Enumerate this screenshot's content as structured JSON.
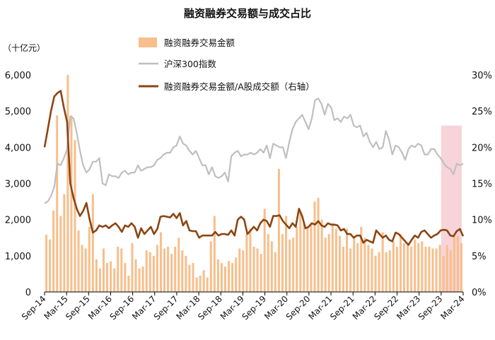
{
  "chart_data": {
    "type": "bar",
    "title": "融资融券交易额与成交占比",
    "y_left_unit": "（十亿元）",
    "legend": [
      {
        "key": "bar",
        "label": "融资融券交易金额",
        "color": "#f7bf8c"
      },
      {
        "key": "index",
        "label": "沪深300指数",
        "color": "#bfbfbf"
      },
      {
        "key": "ratio",
        "label": "融资融券交易金额/A股成交额（右轴）",
        "color": "#8b4513"
      }
    ],
    "y_left": {
      "min": 0,
      "max": 6000,
      "ticks": [
        "0",
        "1,000",
        "2,000",
        "3,000",
        "4,000",
        "5,000",
        "6,000"
      ]
    },
    "y_right": {
      "min": 0,
      "max": 30,
      "ticks": [
        "0%",
        "5%",
        "10%",
        "15%",
        "20%",
        "25%",
        "30%"
      ]
    },
    "x_ticks": [
      "Sep-14",
      "Mar-15",
      "Sep-15",
      "Mar-16",
      "Sep-16",
      "Mar-17",
      "Sep-17",
      "Mar-18",
      "Sep-18",
      "Mar-19",
      "Sep-19",
      "Mar-20",
      "Sep-20",
      "Mar-21",
      "Sep-21",
      "Mar-22",
      "Sep-22",
      "Mar-23",
      "Sep-23",
      "Mar-24"
    ],
    "highlight": {
      "from": "Sep-23",
      "to": "Mar-24",
      "color": "#f4c6cc"
    },
    "series": [
      {
        "name": "融资融券交易金额",
        "unit": "十亿元",
        "values": [
          1580,
          1450,
          2250,
          4880,
          2100,
          2700,
          6000,
          4880,
          4200,
          1700,
          1300,
          1200,
          1800,
          2700,
          900,
          650,
          1200,
          800,
          850,
          650,
          1250,
          1200,
          800,
          450,
          1350,
          900,
          650,
          700,
          1150,
          1100,
          1000,
          1300,
          1650,
          1200,
          1250,
          1050,
          1250,
          1500,
          1150,
          1000,
          750,
          800,
          400,
          450,
          600,
          400,
          1400,
          2100,
          900,
          800,
          700,
          850,
          800,
          950,
          1200,
          1150,
          1600,
          1750,
          1250,
          1200,
          1050,
          2300,
          1600,
          1400,
          1100,
          3400,
          1600,
          2100,
          1450,
          1500,
          1800,
          2200,
          1900,
          1800,
          1900,
          2500,
          2600,
          2000,
          1500,
          1600,
          1900,
          1750,
          1550,
          1250,
          1750,
          1200,
          1550,
          1350,
          1800,
          1500,
          1300,
          1200,
          1000,
          1100,
          1650,
          1100,
          1150,
          1400,
          1250,
          1600,
          1350,
          1350,
          1250,
          1450,
          1350,
          1400,
          1250,
          1250,
          1200,
          1200,
          1300,
          1000,
          1300,
          1150,
          1550,
          1550,
          1350
        ]
      },
      {
        "name": "沪深300指数",
        "unit": "points",
        "values": [
          2450,
          2500,
          2650,
          2900,
          3550,
          3500,
          3700,
          3950,
          4850,
          4800,
          4400,
          3900,
          3500,
          3300,
          3400,
          3600,
          3600,
          3700,
          3000,
          2950,
          3250,
          3200,
          3200,
          3150,
          3300,
          3350,
          3250,
          3300,
          3300,
          3500,
          3350,
          3400,
          3450,
          3450,
          3500,
          3650,
          3700,
          3800,
          3850,
          3850,
          4000,
          4050,
          4300,
          4100,
          4050,
          3900,
          3800,
          3900,
          3700,
          3500,
          3500,
          3250,
          3450,
          3200,
          3150,
          3200,
          3300,
          3050,
          3750,
          3850,
          3900,
          3750,
          3800,
          3800,
          3850,
          3800,
          3850,
          3950,
          3850,
          4050,
          3700,
          4100,
          4050,
          4000,
          4000,
          3700,
          4150,
          4500,
          4700,
          4800,
          4900,
          4700,
          4500,
          4800,
          5300,
          5350,
          5200,
          4900,
          5200,
          5100,
          4750,
          4800,
          4700,
          4850,
          4800,
          4900,
          4600,
          4550,
          4600,
          4300,
          4400,
          4150,
          4000,
          4150,
          3950,
          4000,
          4450,
          4200,
          3800,
          4050,
          4000,
          3850,
          3650,
          3950,
          4050,
          4000,
          4100,
          4050,
          3800,
          3800,
          3950,
          3950,
          3800,
          3700,
          3550,
          3450,
          3400,
          3250,
          3550,
          3500,
          3550
        ]
      },
      {
        "name": "融资融券交易金额/A股成交额",
        "unit": "%",
        "values": [
          20.0,
          22.5,
          25.0,
          27.0,
          27.5,
          27.8,
          25.5,
          23.5,
          15.0,
          13.0,
          11.5,
          10.5,
          11.2,
          12.3,
          10.0,
          8.2,
          8.5,
          9.2,
          9.0,
          9.2,
          8.8,
          9.2,
          9.5,
          9.0,
          8.3,
          9.2,
          9.0,
          9.5,
          9.0,
          7.5,
          8.8,
          8.0,
          8.5,
          9.0,
          8.0,
          8.7,
          10.4,
          10.5,
          10.4,
          10.3,
          10.8,
          10.2,
          10.9,
          9.2,
          9.8,
          8.5,
          8.4,
          8.4,
          7.5,
          7.8,
          7.8,
          7.8,
          7.8,
          8.3,
          7.8,
          8.0,
          8.0,
          7.9,
          8.5,
          7.8,
          10.0,
          10.4,
          10.0,
          8.0,
          8.5,
          9.0,
          8.5,
          9.5,
          10.0,
          9.8,
          9.0,
          10.5,
          10.5,
          10.6,
          9.8,
          9.3,
          8.8,
          9.5,
          9.0,
          11.5,
          10.5,
          8.8,
          9.0,
          9.5,
          9.3,
          9.8,
          9.2,
          9.0,
          9.5,
          9.3,
          9.3,
          9.2,
          8.5,
          8.7,
          8.0,
          8.0,
          7.5,
          7.8,
          7.8,
          6.8,
          7.2,
          7.0,
          6.8,
          8.5,
          8.0,
          7.5,
          7.8,
          7.2,
          7.0,
          8.2,
          8.0,
          7.5,
          7.0,
          6.5,
          7.2,
          7.8,
          7.5,
          8.3,
          8.5,
          8.0,
          7.5,
          7.8,
          8.0,
          8.5,
          8.6,
          8.5,
          7.8,
          7.7,
          8.4,
          8.7,
          7.7
        ]
      }
    ]
  }
}
